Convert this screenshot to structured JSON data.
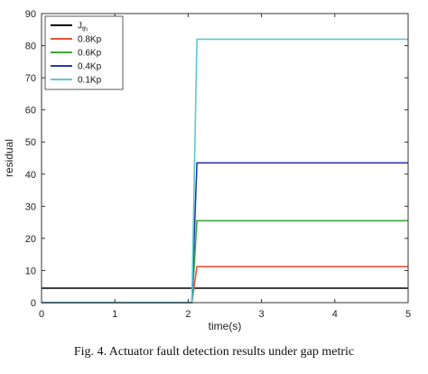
{
  "chart_data": {
    "type": "line",
    "xlabel": "time(s)",
    "ylabel": "residual",
    "xlim": [
      0,
      5
    ],
    "ylim": [
      0,
      90
    ],
    "xticks": [
      0,
      1,
      2,
      3,
      4,
      5
    ],
    "yticks": [
      0,
      10,
      20,
      30,
      40,
      50,
      60,
      70,
      80,
      90
    ],
    "grid": false,
    "legend_position": "top-left",
    "series": [
      {
        "name": "J",
        "name_subscript": "th",
        "color": "#000000",
        "x": [
          0,
          5
        ],
        "y": [
          4.5,
          4.5
        ]
      },
      {
        "name": "0.8Kp",
        "color": "#e8553a",
        "x": [
          0,
          2.05,
          2.12,
          5
        ],
        "y": [
          0,
          0,
          11.2,
          11.2
        ]
      },
      {
        "name": "0.6Kp",
        "color": "#3aa83a",
        "x": [
          0,
          2.05,
          2.12,
          5
        ],
        "y": [
          0,
          0,
          25.5,
          25.5
        ]
      },
      {
        "name": "0.4Kp",
        "color": "#2a3aa8",
        "x": [
          0,
          2.05,
          2.12,
          5
        ],
        "y": [
          0,
          0,
          43.5,
          43.5
        ]
      },
      {
        "name": "0.1Kp",
        "color": "#5ec8d0",
        "x": [
          0,
          2.05,
          2.12,
          5
        ],
        "y": [
          0,
          0,
          82,
          82
        ]
      }
    ]
  },
  "caption": "Fig. 4.   Actuator fault detection results under gap metric"
}
